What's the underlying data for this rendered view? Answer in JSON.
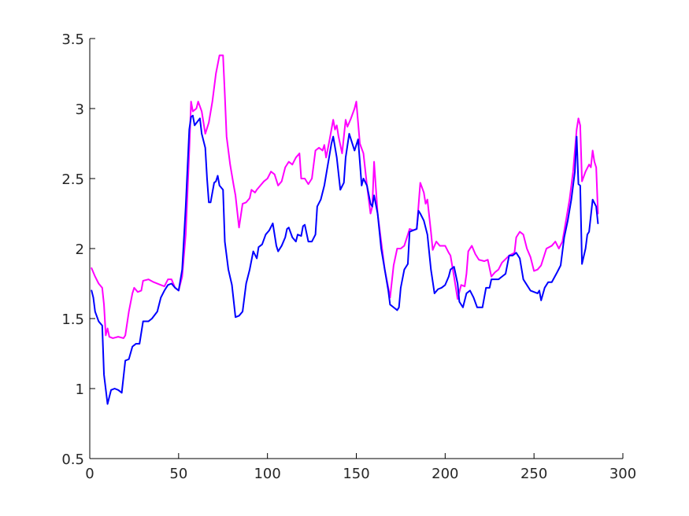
{
  "chart_data": {
    "type": "line",
    "title": "",
    "xlabel": "",
    "ylabel": "",
    "xlim": [
      0,
      300
    ],
    "ylim": [
      0.5,
      3.5
    ],
    "x_ticks": [
      0,
      50,
      100,
      150,
      200,
      250,
      300
    ],
    "y_ticks": [
      0.5,
      1,
      1.5,
      2,
      2.5,
      3,
      3.5
    ],
    "x_tick_labels": [
      "0",
      "50",
      "100",
      "150",
      "200",
      "250",
      "300"
    ],
    "y_tick_labels": [
      "0.5",
      "1",
      "1.5",
      "2",
      "2.5",
      "3",
      "3.5"
    ],
    "grid": false,
    "legend": "none",
    "series": [
      {
        "color": "#ff00ff",
        "points": [
          [
            1,
            1.86
          ],
          [
            3,
            1.8
          ],
          [
            5,
            1.75
          ],
          [
            7,
            1.72
          ],
          [
            8,
            1.6
          ],
          [
            9,
            1.38
          ],
          [
            10,
            1.43
          ],
          [
            11,
            1.37
          ],
          [
            13,
            1.36
          ],
          [
            16,
            1.37
          ],
          [
            19,
            1.36
          ],
          [
            20,
            1.38
          ],
          [
            22,
            1.55
          ],
          [
            24,
            1.68
          ],
          [
            25,
            1.72
          ],
          [
            27,
            1.69
          ],
          [
            29,
            1.7
          ],
          [
            30,
            1.77
          ],
          [
            33,
            1.78
          ],
          [
            36,
            1.76
          ],
          [
            40,
            1.74
          ],
          [
            42,
            1.73
          ],
          [
            44,
            1.78
          ],
          [
            46,
            1.78
          ],
          [
            48,
            1.72
          ],
          [
            50,
            1.7
          ],
          [
            52,
            1.8
          ],
          [
            54,
            2.1
          ],
          [
            56,
            2.7
          ],
          [
            57,
            3.05
          ],
          [
            58,
            2.98
          ],
          [
            60,
            3.0
          ],
          [
            61,
            3.05
          ],
          [
            63,
            2.98
          ],
          [
            65,
            2.82
          ],
          [
            67,
            2.9
          ],
          [
            69,
            3.05
          ],
          [
            71,
            3.25
          ],
          [
            73,
            3.38
          ],
          [
            75,
            3.38
          ],
          [
            76,
            3.1
          ],
          [
            77,
            2.8
          ],
          [
            79,
            2.6
          ],
          [
            81,
            2.45
          ],
          [
            82,
            2.38
          ],
          [
            84,
            2.15
          ],
          [
            86,
            2.32
          ],
          [
            88,
            2.33
          ],
          [
            90,
            2.36
          ],
          [
            91,
            2.42
          ],
          [
            93,
            2.4
          ],
          [
            94,
            2.42
          ],
          [
            96,
            2.45
          ],
          [
            98,
            2.48
          ],
          [
            100,
            2.5
          ],
          [
            102,
            2.55
          ],
          [
            104,
            2.53
          ],
          [
            106,
            2.45
          ],
          [
            108,
            2.48
          ],
          [
            110,
            2.58
          ],
          [
            112,
            2.62
          ],
          [
            114,
            2.6
          ],
          [
            116,
            2.65
          ],
          [
            118,
            2.68
          ],
          [
            119,
            2.5
          ],
          [
            121,
            2.5
          ],
          [
            123,
            2.46
          ],
          [
            125,
            2.5
          ],
          [
            127,
            2.7
          ],
          [
            129,
            2.72
          ],
          [
            131,
            2.7
          ],
          [
            132,
            2.74
          ],
          [
            133,
            2.65
          ],
          [
            135,
            2.78
          ],
          [
            137,
            2.92
          ],
          [
            138,
            2.85
          ],
          [
            139,
            2.88
          ],
          [
            140,
            2.8
          ],
          [
            142,
            2.68
          ],
          [
            144,
            2.92
          ],
          [
            145,
            2.87
          ],
          [
            147,
            2.93
          ],
          [
            149,
            3.0
          ],
          [
            150,
            3.05
          ],
          [
            152,
            2.75
          ],
          [
            154,
            2.68
          ],
          [
            156,
            2.45
          ],
          [
            158,
            2.25
          ],
          [
            159,
            2.3
          ],
          [
            160,
            2.62
          ],
          [
            162,
            2.25
          ],
          [
            164,
            2.05
          ],
          [
            166,
            1.85
          ],
          [
            168,
            1.72
          ],
          [
            169,
            1.65
          ],
          [
            171,
            1.88
          ],
          [
            173,
            2.0
          ],
          [
            175,
            2.0
          ],
          [
            177,
            2.02
          ],
          [
            179,
            2.1
          ],
          [
            180,
            2.14
          ],
          [
            182,
            2.13
          ],
          [
            184,
            2.14
          ],
          [
            186,
            2.47
          ],
          [
            188,
            2.4
          ],
          [
            189,
            2.32
          ],
          [
            190,
            2.35
          ],
          [
            192,
            2.12
          ],
          [
            193,
            1.99
          ],
          [
            195,
            2.05
          ],
          [
            197,
            2.02
          ],
          [
            200,
            2.02
          ],
          [
            202,
            1.97
          ],
          [
            203,
            1.95
          ],
          [
            205,
            1.8
          ],
          [
            207,
            1.64
          ],
          [
            209,
            1.74
          ],
          [
            211,
            1.73
          ],
          [
            212,
            1.82
          ],
          [
            213,
            1.98
          ],
          [
            215,
            2.02
          ],
          [
            217,
            1.96
          ],
          [
            219,
            1.92
          ],
          [
            222,
            1.91
          ],
          [
            224,
            1.92
          ],
          [
            226,
            1.8
          ],
          [
            228,
            1.83
          ],
          [
            230,
            1.85
          ],
          [
            232,
            1.9
          ],
          [
            236,
            1.95
          ],
          [
            239,
            1.97
          ],
          [
            240,
            2.08
          ],
          [
            242,
            2.12
          ],
          [
            244,
            2.1
          ],
          [
            246,
            2.0
          ],
          [
            248,
            1.94
          ],
          [
            250,
            1.84
          ],
          [
            252,
            1.85
          ],
          [
            254,
            1.88
          ],
          [
            257,
            2.0
          ],
          [
            260,
            2.02
          ],
          [
            262,
            2.05
          ],
          [
            264,
            2.0
          ],
          [
            266,
            2.05
          ],
          [
            268,
            2.2
          ],
          [
            270,
            2.35
          ],
          [
            272,
            2.55
          ],
          [
            274,
            2.85
          ],
          [
            275,
            2.93
          ],
          [
            276,
            2.88
          ],
          [
            277,
            2.48
          ],
          [
            279,
            2.55
          ],
          [
            281,
            2.6
          ],
          [
            282,
            2.58
          ],
          [
            283,
            2.7
          ],
          [
            284,
            2.62
          ],
          [
            285,
            2.58
          ],
          [
            286,
            2.25
          ]
        ]
      },
      {
        "color": "#0000ff",
        "points": [
          [
            1,
            1.7
          ],
          [
            2,
            1.65
          ],
          [
            3,
            1.55
          ],
          [
            5,
            1.48
          ],
          [
            7,
            1.45
          ],
          [
            8,
            1.1
          ],
          [
            10,
            0.89
          ],
          [
            12,
            0.99
          ],
          [
            14,
            1.0
          ],
          [
            16,
            0.99
          ],
          [
            18,
            0.97
          ],
          [
            20,
            1.2
          ],
          [
            22,
            1.21
          ],
          [
            24,
            1.3
          ],
          [
            26,
            1.32
          ],
          [
            28,
            1.32
          ],
          [
            30,
            1.48
          ],
          [
            33,
            1.48
          ],
          [
            35,
            1.5
          ],
          [
            38,
            1.55
          ],
          [
            40,
            1.65
          ],
          [
            42,
            1.7
          ],
          [
            44,
            1.74
          ],
          [
            46,
            1.75
          ],
          [
            48,
            1.72
          ],
          [
            50,
            1.7
          ],
          [
            52,
            1.85
          ],
          [
            54,
            2.3
          ],
          [
            56,
            2.85
          ],
          [
            57,
            2.94
          ],
          [
            58,
            2.95
          ],
          [
            59,
            2.88
          ],
          [
            62,
            2.93
          ],
          [
            63,
            2.82
          ],
          [
            65,
            2.72
          ],
          [
            66,
            2.5
          ],
          [
            67,
            2.33
          ],
          [
            68,
            2.33
          ],
          [
            70,
            2.47
          ],
          [
            71,
            2.48
          ],
          [
            72,
            2.52
          ],
          [
            73,
            2.45
          ],
          [
            75,
            2.42
          ],
          [
            76,
            2.05
          ],
          [
            78,
            1.85
          ],
          [
            80,
            1.74
          ],
          [
            82,
            1.51
          ],
          [
            84,
            1.52
          ],
          [
            86,
            1.55
          ],
          [
            88,
            1.75
          ],
          [
            90,
            1.85
          ],
          [
            92,
            1.98
          ],
          [
            94,
            1.93
          ],
          [
            95,
            2.01
          ],
          [
            97,
            2.03
          ],
          [
            99,
            2.1
          ],
          [
            101,
            2.13
          ],
          [
            103,
            2.18
          ],
          [
            105,
            2.02
          ],
          [
            106,
            1.98
          ],
          [
            108,
            2.02
          ],
          [
            110,
            2.08
          ],
          [
            111,
            2.14
          ],
          [
            112,
            2.15
          ],
          [
            114,
            2.08
          ],
          [
            116,
            2.05
          ],
          [
            117,
            2.1
          ],
          [
            119,
            2.09
          ],
          [
            120,
            2.16
          ],
          [
            121,
            2.17
          ],
          [
            123,
            2.05
          ],
          [
            125,
            2.05
          ],
          [
            127,
            2.1
          ],
          [
            128,
            2.3
          ],
          [
            130,
            2.35
          ],
          [
            132,
            2.45
          ],
          [
            134,
            2.6
          ],
          [
            136,
            2.75
          ],
          [
            137,
            2.8
          ],
          [
            139,
            2.65
          ],
          [
            141,
            2.42
          ],
          [
            143,
            2.47
          ],
          [
            144,
            2.65
          ],
          [
            146,
            2.82
          ],
          [
            147,
            2.78
          ],
          [
            149,
            2.7
          ],
          [
            151,
            2.78
          ],
          [
            152,
            2.62
          ],
          [
            153,
            2.45
          ],
          [
            154,
            2.5
          ],
          [
            156,
            2.45
          ],
          [
            158,
            2.32
          ],
          [
            159,
            2.3
          ],
          [
            160,
            2.38
          ],
          [
            162,
            2.25
          ],
          [
            164,
            2.0
          ],
          [
            166,
            1.85
          ],
          [
            168,
            1.7
          ],
          [
            169,
            1.6
          ],
          [
            171,
            1.58
          ],
          [
            173,
            1.56
          ],
          [
            174,
            1.58
          ],
          [
            175,
            1.72
          ],
          [
            177,
            1.85
          ],
          [
            178,
            1.87
          ],
          [
            179,
            1.89
          ],
          [
            180,
            2.12
          ],
          [
            182,
            2.13
          ],
          [
            184,
            2.14
          ],
          [
            185,
            2.27
          ],
          [
            186,
            2.25
          ],
          [
            188,
            2.2
          ],
          [
            190,
            2.1
          ],
          [
            192,
            1.85
          ],
          [
            194,
            1.68
          ],
          [
            196,
            1.71
          ],
          [
            198,
            1.72
          ],
          [
            200,
            1.74
          ],
          [
            202,
            1.8
          ],
          [
            203,
            1.85
          ],
          [
            205,
            1.87
          ],
          [
            207,
            1.75
          ],
          [
            208,
            1.62
          ],
          [
            210,
            1.58
          ],
          [
            212,
            1.68
          ],
          [
            214,
            1.7
          ],
          [
            216,
            1.65
          ],
          [
            218,
            1.58
          ],
          [
            221,
            1.58
          ],
          [
            223,
            1.72
          ],
          [
            225,
            1.72
          ],
          [
            226,
            1.78
          ],
          [
            228,
            1.78
          ],
          [
            230,
            1.78
          ],
          [
            232,
            1.8
          ],
          [
            234,
            1.82
          ],
          [
            236,
            1.95
          ],
          [
            238,
            1.95
          ],
          [
            240,
            1.97
          ],
          [
            242,
            1.93
          ],
          [
            244,
            1.78
          ],
          [
            246,
            1.74
          ],
          [
            248,
            1.7
          ],
          [
            250,
            1.69
          ],
          [
            252,
            1.68
          ],
          [
            253,
            1.7
          ],
          [
            254,
            1.63
          ],
          [
            256,
            1.72
          ],
          [
            258,
            1.76
          ],
          [
            260,
            1.76
          ],
          [
            263,
            1.83
          ],
          [
            265,
            1.88
          ],
          [
            267,
            2.08
          ],
          [
            269,
            2.2
          ],
          [
            271,
            2.35
          ],
          [
            273,
            2.55
          ],
          [
            274,
            2.8
          ],
          [
            275,
            2.46
          ],
          [
            276,
            2.45
          ],
          [
            277,
            1.89
          ],
          [
            279,
            2.0
          ],
          [
            280,
            2.1
          ],
          [
            281,
            2.12
          ],
          [
            283,
            2.35
          ],
          [
            285,
            2.3
          ],
          [
            286,
            2.18
          ]
        ]
      }
    ]
  }
}
